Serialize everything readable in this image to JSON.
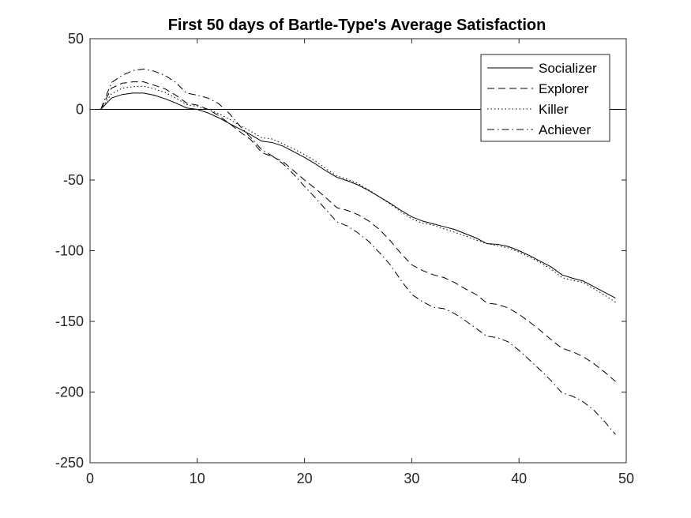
{
  "chart_data": {
    "type": "line",
    "title": "First 50 days of Bartle-Type's Average Satisfaction",
    "xlabel": "",
    "ylabel": "",
    "xlim": [
      0,
      50
    ],
    "ylim": [
      -250,
      50
    ],
    "xticks": [
      0,
      10,
      20,
      30,
      40,
      50
    ],
    "yticks": [
      50,
      0,
      -50,
      -100,
      -150,
      -200,
      -250
    ],
    "grid": false,
    "zero_line": true,
    "legend_position": "top-right",
    "x": [
      1,
      2,
      3,
      4,
      5,
      6,
      7,
      8,
      9,
      10,
      11,
      12,
      13,
      14,
      15,
      16,
      17,
      18,
      19,
      20,
      21,
      22,
      23,
      24,
      25,
      26,
      27,
      28,
      29,
      30,
      31,
      32,
      33,
      34,
      35,
      36,
      37,
      38,
      39,
      40,
      41,
      42,
      43,
      44,
      45,
      46,
      47,
      48,
      49
    ],
    "series": [
      {
        "name": "Socializer",
        "dash": "",
        "values": [
          0,
          8,
          10.5,
          11.5,
          11.5,
          10,
          7.5,
          4.5,
          1,
          0,
          -2.5,
          -6,
          -10,
          -14,
          -18,
          -22.5,
          -23.5,
          -26,
          -30,
          -34,
          -38.5,
          -43.5,
          -48,
          -50.5,
          -53.5,
          -57.5,
          -62,
          -66.5,
          -71.5,
          -76,
          -79,
          -81,
          -83,
          -85,
          -88,
          -91,
          -95,
          -95.5,
          -97,
          -100,
          -103.5,
          -107.5,
          -111.5,
          -117,
          -119.5,
          -121.5,
          -125.5,
          -129.5,
          -133.5
        ]
      },
      {
        "name": "Explorer",
        "dash": "9,5",
        "values": [
          0,
          15,
          18.5,
          19.5,
          19.5,
          17,
          14.5,
          10,
          4.5,
          3,
          0,
          -4.5,
          -10,
          -16,
          -21.5,
          -30.5,
          -33.5,
          -37,
          -43.5,
          -50,
          -56,
          -62.5,
          -69.5,
          -71.5,
          -74.5,
          -79,
          -85,
          -93,
          -102,
          -110,
          -114,
          -117,
          -119,
          -122.5,
          -127,
          -131,
          -137,
          -138,
          -140.5,
          -145,
          -150.5,
          -156.5,
          -163,
          -169,
          -171.5,
          -175,
          -180,
          -186,
          -192.5
        ]
      },
      {
        "name": "Killer",
        "dash": "1.5,3",
        "values": [
          0,
          11,
          15,
          16,
          16.5,
          14.5,
          12,
          8,
          3.5,
          2,
          0,
          -3,
          -7,
          -11.5,
          -15.5,
          -20,
          -21,
          -24.5,
          -28,
          -32,
          -36.5,
          -42,
          -47,
          -49.5,
          -52.5,
          -57,
          -62,
          -67,
          -72.5,
          -77.5,
          -80.5,
          -82,
          -84.5,
          -87,
          -89.5,
          -92.5,
          -95,
          -96.5,
          -98,
          -101,
          -104.5,
          -108.5,
          -113,
          -119,
          -121,
          -122.5,
          -127,
          -131.5,
          -136.5
        ]
      },
      {
        "name": "Achiever",
        "dash": "9,4,1.5,4",
        "values": [
          0,
          19,
          24,
          27.5,
          28.5,
          27,
          24,
          19,
          11.5,
          10,
          8,
          4,
          -3,
          -12,
          -20,
          -28.5,
          -33,
          -38.5,
          -46,
          -54.5,
          -62.5,
          -71,
          -79.5,
          -82.5,
          -87.5,
          -93.5,
          -101.5,
          -110,
          -121,
          -131,
          -136,
          -140,
          -141,
          -144.5,
          -149.5,
          -155,
          -160.5,
          -161.5,
          -164.5,
          -170.5,
          -177.5,
          -184.5,
          -192,
          -200.5,
          -203,
          -207,
          -213,
          -221,
          -230
        ]
      }
    ]
  }
}
